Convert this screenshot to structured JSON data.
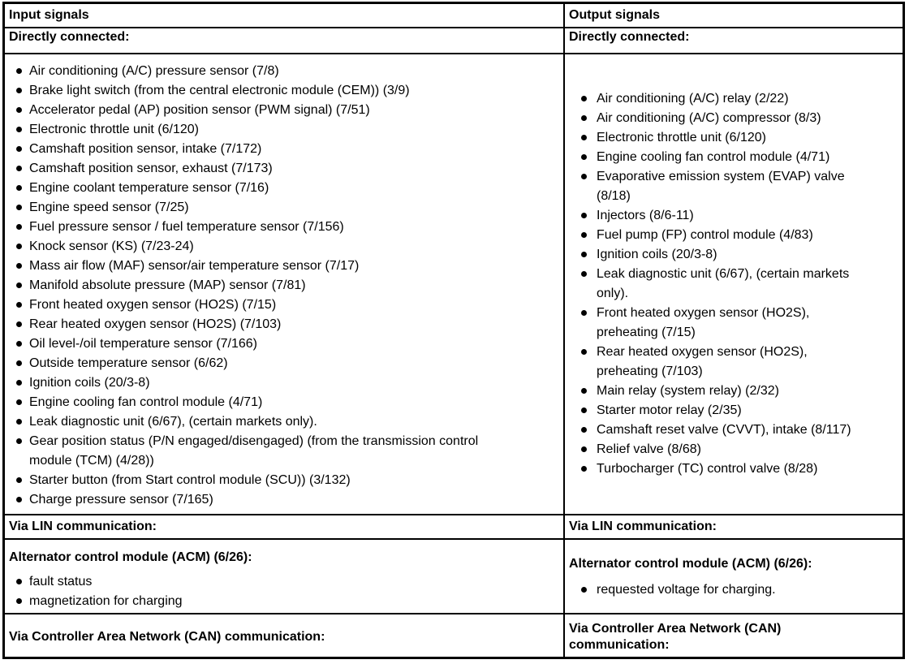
{
  "table": {
    "input": {
      "header": "Input signals",
      "directly_connected_label": "Directly connected:",
      "directly_connected_items": [
        "Air conditioning (A/C) pressure sensor (7/8)",
        "Brake light switch (from the central electronic module (CEM)) (3/9)",
        "Accelerator pedal (AP) position sensor (PWM signal) (7/51)",
        "Electronic throttle unit (6/120)",
        "Camshaft position sensor, intake (7/172)",
        "Camshaft position sensor, exhaust (7/173)",
        "Engine coolant temperature sensor (7/16)",
        "Engine speed sensor (7/25)",
        "Fuel pressure sensor / fuel temperature sensor (7/156)",
        "Knock sensor (KS) (7/23-24)",
        "Mass air flow (MAF) sensor/air temperature sensor (7/17)",
        "Manifold absolute pressure (MAP) sensor (7/81)",
        "Front heated oxygen sensor (HO2S) (7/15)",
        "Rear heated oxygen sensor (HO2S) (7/103)",
        "Oil level-/oil temperature sensor (7/166)",
        "Outside temperature sensor (6/62)",
        "Ignition coils (20/3-8)",
        "Engine cooling fan control module (4/71)",
        "Leak diagnostic unit (6/67), (certain markets only).",
        "Gear position status (P/N engaged/disengaged) (from the transmission control\nmodule (TCM) (4/28))",
        "Starter button (from Start control module (SCU)) (3/132)",
        "Charge pressure sensor (7/165)"
      ],
      "via_lin_label": "Via LIN communication:",
      "acm_heading": "Alternator control module (ACM) (6/26):",
      "acm_items": [
        "fault status",
        "magnetization for charging"
      ],
      "via_can_label": "Via Controller Area Network (CAN) communication:"
    },
    "output": {
      "header": "Output signals",
      "directly_connected_label": "Directly connected:",
      "directly_connected_items": [
        "Air conditioning (A/C) relay (2/22)",
        "Air conditioning (A/C) compressor (8/3)",
        "Electronic throttle unit (6/120)",
        "Engine cooling fan control module (4/71)",
        "Evaporative emission system (EVAP) valve\n(8/18)",
        "Injectors (8/6-11)",
        "Fuel pump (FP) control module (4/83)",
        "Ignition coils (20/3-8)",
        "Leak diagnostic unit (6/67), (certain markets\nonly).",
        "Front heated oxygen sensor (HO2S),\npreheating (7/15)",
        "Rear heated oxygen sensor (HO2S),\npreheating (7/103)",
        "Main relay (system relay) (2/32)",
        "Starter motor relay (2/35)",
        "Camshaft reset valve (CVVT), intake (8/117)",
        "Relief valve (8/68)",
        "Turbocharger (TC) control valve (8/28)"
      ],
      "via_lin_label": "Via LIN communication:",
      "acm_heading": "Alternator control module (ACM) (6/26):",
      "acm_items": [
        "requested voltage for charging."
      ],
      "via_can_label": "Via Controller Area Network (CAN)\ncommunication:"
    }
  }
}
